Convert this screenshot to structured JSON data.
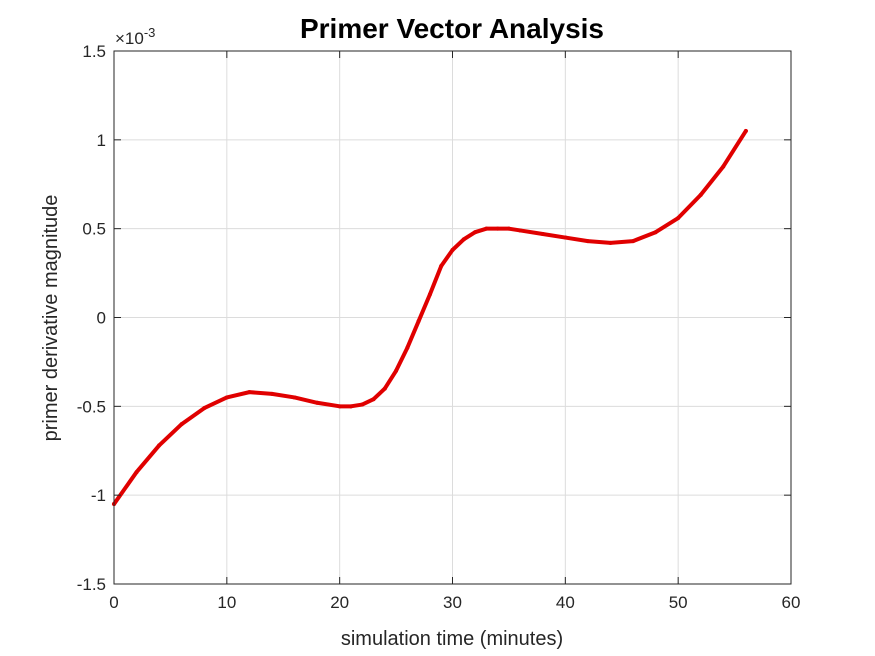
{
  "chart_data": {
    "type": "line",
    "title": "Primer Vector Analysis",
    "xlabel": "simulation time (minutes)",
    "ylabel": "primer derivative magnitude",
    "exponent_label": {
      "base": "×10",
      "exponent": "-3"
    },
    "xlim": [
      0,
      60
    ],
    "ylim": [
      -1.5,
      1.5
    ],
    "x_ticks": [
      0,
      10,
      20,
      30,
      40,
      50,
      60
    ],
    "x_tick_labels": [
      "0",
      "10",
      "20",
      "30",
      "40",
      "50",
      "60"
    ],
    "y_ticks": [
      -1.5,
      -1,
      -0.5,
      0,
      0.5,
      1,
      1.5
    ],
    "y_tick_labels": [
      "-1.5",
      "-1",
      "-0.5",
      "0",
      "0.5",
      "1",
      "1.5"
    ],
    "grid": true,
    "series": [
      {
        "color": "#e00000",
        "x": [
          0,
          2,
          4,
          6,
          8,
          10,
          12,
          14,
          16,
          18,
          20,
          21,
          22,
          23,
          24,
          25,
          26,
          27,
          28,
          29,
          30,
          31,
          32,
          33,
          34,
          35,
          36,
          38,
          40,
          42,
          44,
          46,
          48,
          50,
          52,
          54,
          56
        ],
        "y": [
          -1.05,
          -0.87,
          -0.72,
          -0.6,
          -0.51,
          -0.45,
          -0.42,
          -0.43,
          -0.45,
          -0.48,
          -0.5,
          -0.5,
          -0.49,
          -0.46,
          -0.4,
          -0.3,
          -0.17,
          -0.02,
          0.13,
          0.29,
          0.38,
          0.44,
          0.48,
          0.5,
          0.5,
          0.5,
          0.49,
          0.47,
          0.45,
          0.43,
          0.42,
          0.43,
          0.48,
          0.56,
          0.69,
          0.85,
          1.05
        ]
      }
    ]
  }
}
